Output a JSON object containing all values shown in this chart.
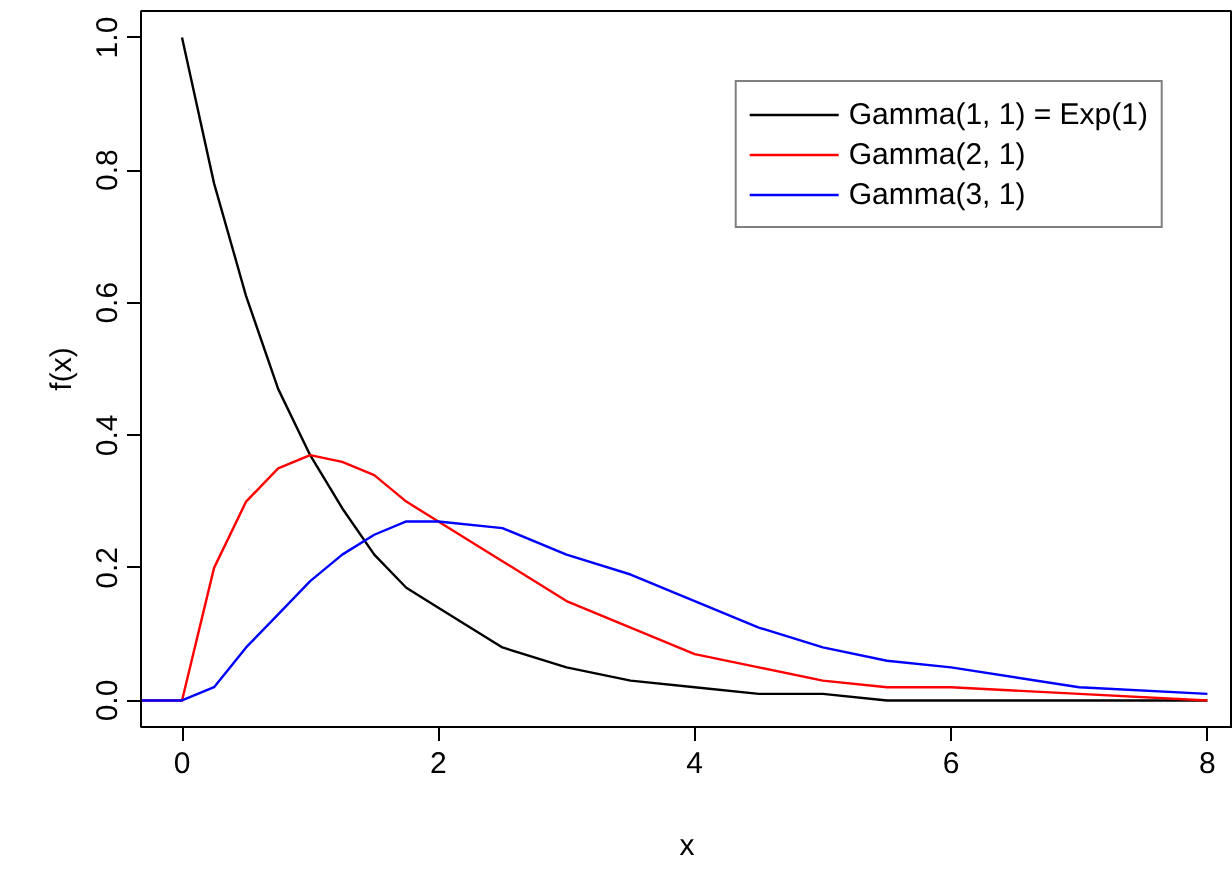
{
  "chart_data": {
    "type": "line",
    "xlabel": "x",
    "ylabel": "f(x)",
    "xlim": [
      -0.32,
      8.2
    ],
    "ylim": [
      -0.04,
      1.04
    ],
    "xticks": [
      0,
      2,
      4,
      6,
      8
    ],
    "yticks": [
      {
        "value": 0,
        "label": "0.0"
      },
      0.2,
      0.4,
      0.6,
      0.8,
      {
        "value": 1,
        "label": "1.0"
      }
    ],
    "grid": false,
    "legend": "top right",
    "line_style": "solid",
    "marker": "none",
    "series": [
      {
        "name": "Gamma(1, 1) = Exp(1)",
        "color": "#000000",
        "x": [
          0,
          0.25,
          0.5,
          0.75,
          1,
          1.25,
          1.5,
          1.75,
          2,
          2.5,
          3,
          3.5,
          4,
          4.5,
          5,
          5.5,
          6,
          7,
          8
        ],
        "values": [
          1.0,
          0.78,
          0.61,
          0.47,
          0.37,
          0.29,
          0.22,
          0.17,
          0.14,
          0.08,
          0.05,
          0.03,
          0.02,
          0.01,
          0.01,
          0.0,
          0.0,
          0.0,
          0.0
        ]
      },
      {
        "name": "Gamma(2, 1)",
        "color": "#ff0000",
        "x": [
          -0.32,
          0,
          0.25,
          0.5,
          0.75,
          1,
          1.25,
          1.5,
          1.75,
          2,
          2.5,
          3,
          3.5,
          4,
          4.5,
          5,
          5.5,
          6,
          7,
          8
        ],
        "values": [
          0.0,
          0.0,
          0.2,
          0.3,
          0.35,
          0.37,
          0.36,
          0.34,
          0.3,
          0.27,
          0.21,
          0.15,
          0.11,
          0.07,
          0.05,
          0.03,
          0.02,
          0.02,
          0.01,
          0.0
        ]
      },
      {
        "name": "Gamma(3, 1)",
        "color": "#0000ff",
        "x": [
          -0.32,
          0,
          0.25,
          0.5,
          0.75,
          1,
          1.25,
          1.5,
          1.75,
          2,
          2.5,
          3,
          3.5,
          4,
          4.5,
          5,
          5.5,
          6,
          7,
          8
        ],
        "values": [
          0.0,
          0.0,
          0.02,
          0.08,
          0.13,
          0.18,
          0.22,
          0.25,
          0.27,
          0.27,
          0.26,
          0.22,
          0.19,
          0.15,
          0.11,
          0.08,
          0.06,
          0.05,
          0.02,
          0.01
        ]
      }
    ]
  }
}
